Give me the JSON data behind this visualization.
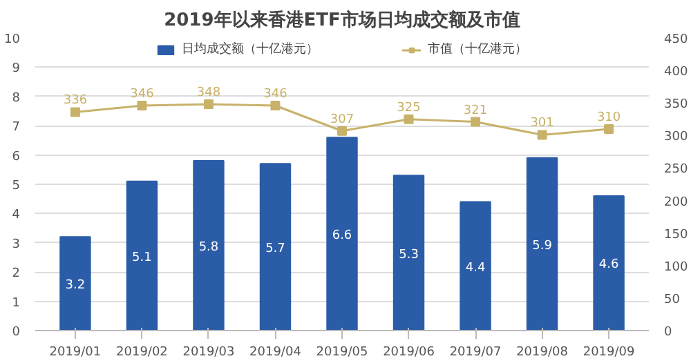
{
  "chart_data": {
    "type": "bar",
    "title": "2019年以来香港ETF市场日均成交额及市值",
    "categories": [
      "2019/01",
      "2019/02",
      "2019/03",
      "2019/04",
      "2019/05",
      "2019/06",
      "2019/07",
      "2019/08",
      "2019/09"
    ],
    "series": [
      {
        "name": "日均成交额（十亿港元）",
        "color": "#2b5ca8",
        "values": [
          3.2,
          5.1,
          5.8,
          5.7,
          6.6,
          5.3,
          4.4,
          5.9,
          4.6
        ]
      },
      {
        "name": "市值（十亿港元）",
        "type": "line",
        "axis": "y2",
        "color": "#c8b26a",
        "values": [
          336,
          346,
          348,
          346,
          307,
          325,
          321,
          301,
          310
        ]
      }
    ],
    "ylim": [
      0,
      10
    ],
    "yticks": [
      0,
      1,
      2,
      3,
      4,
      5,
      6,
      7,
      8,
      9,
      10
    ],
    "y2lim": [
      0,
      450
    ],
    "y2ticks": [
      0,
      50,
      100,
      150,
      200,
      250,
      300,
      350,
      400,
      450
    ],
    "grid": "y",
    "legend": "top",
    "marker": "square",
    "data_labels": true
  }
}
